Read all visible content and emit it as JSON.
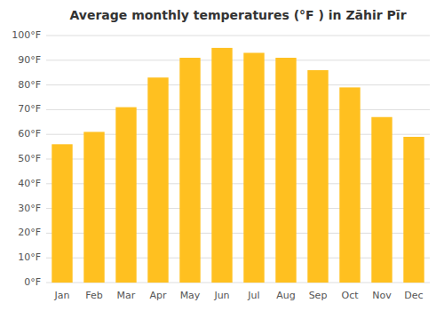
{
  "chart_data": {
    "type": "bar",
    "title": "Average monthly temperatures (°F ) in Zāhir Pīr",
    "categories": [
      "Jan",
      "Feb",
      "Mar",
      "Apr",
      "May",
      "Jun",
      "Jul",
      "Aug",
      "Sep",
      "Oct",
      "Nov",
      "Dec"
    ],
    "values": [
      56,
      61,
      71,
      83,
      91,
      95,
      93,
      91,
      86,
      79,
      67,
      59
    ],
    "color": "#FFC020",
    "ylim": [
      0,
      100
    ],
    "yticks": [
      {
        "value": 0,
        "label": "0°F"
      },
      {
        "value": 10,
        "label": "10°F"
      },
      {
        "value": 20,
        "label": "20°F"
      },
      {
        "value": 30,
        "label": "30°F"
      },
      {
        "value": 40,
        "label": "40°F"
      },
      {
        "value": 50,
        "label": "50°F"
      },
      {
        "value": 60,
        "label": "60°F"
      },
      {
        "value": 70,
        "label": "70°F"
      },
      {
        "value": 80,
        "label": "80°F"
      },
      {
        "value": 90,
        "label": "90°F"
      },
      {
        "value": 100,
        "label": "100°F"
      }
    ],
    "grid": true
  }
}
